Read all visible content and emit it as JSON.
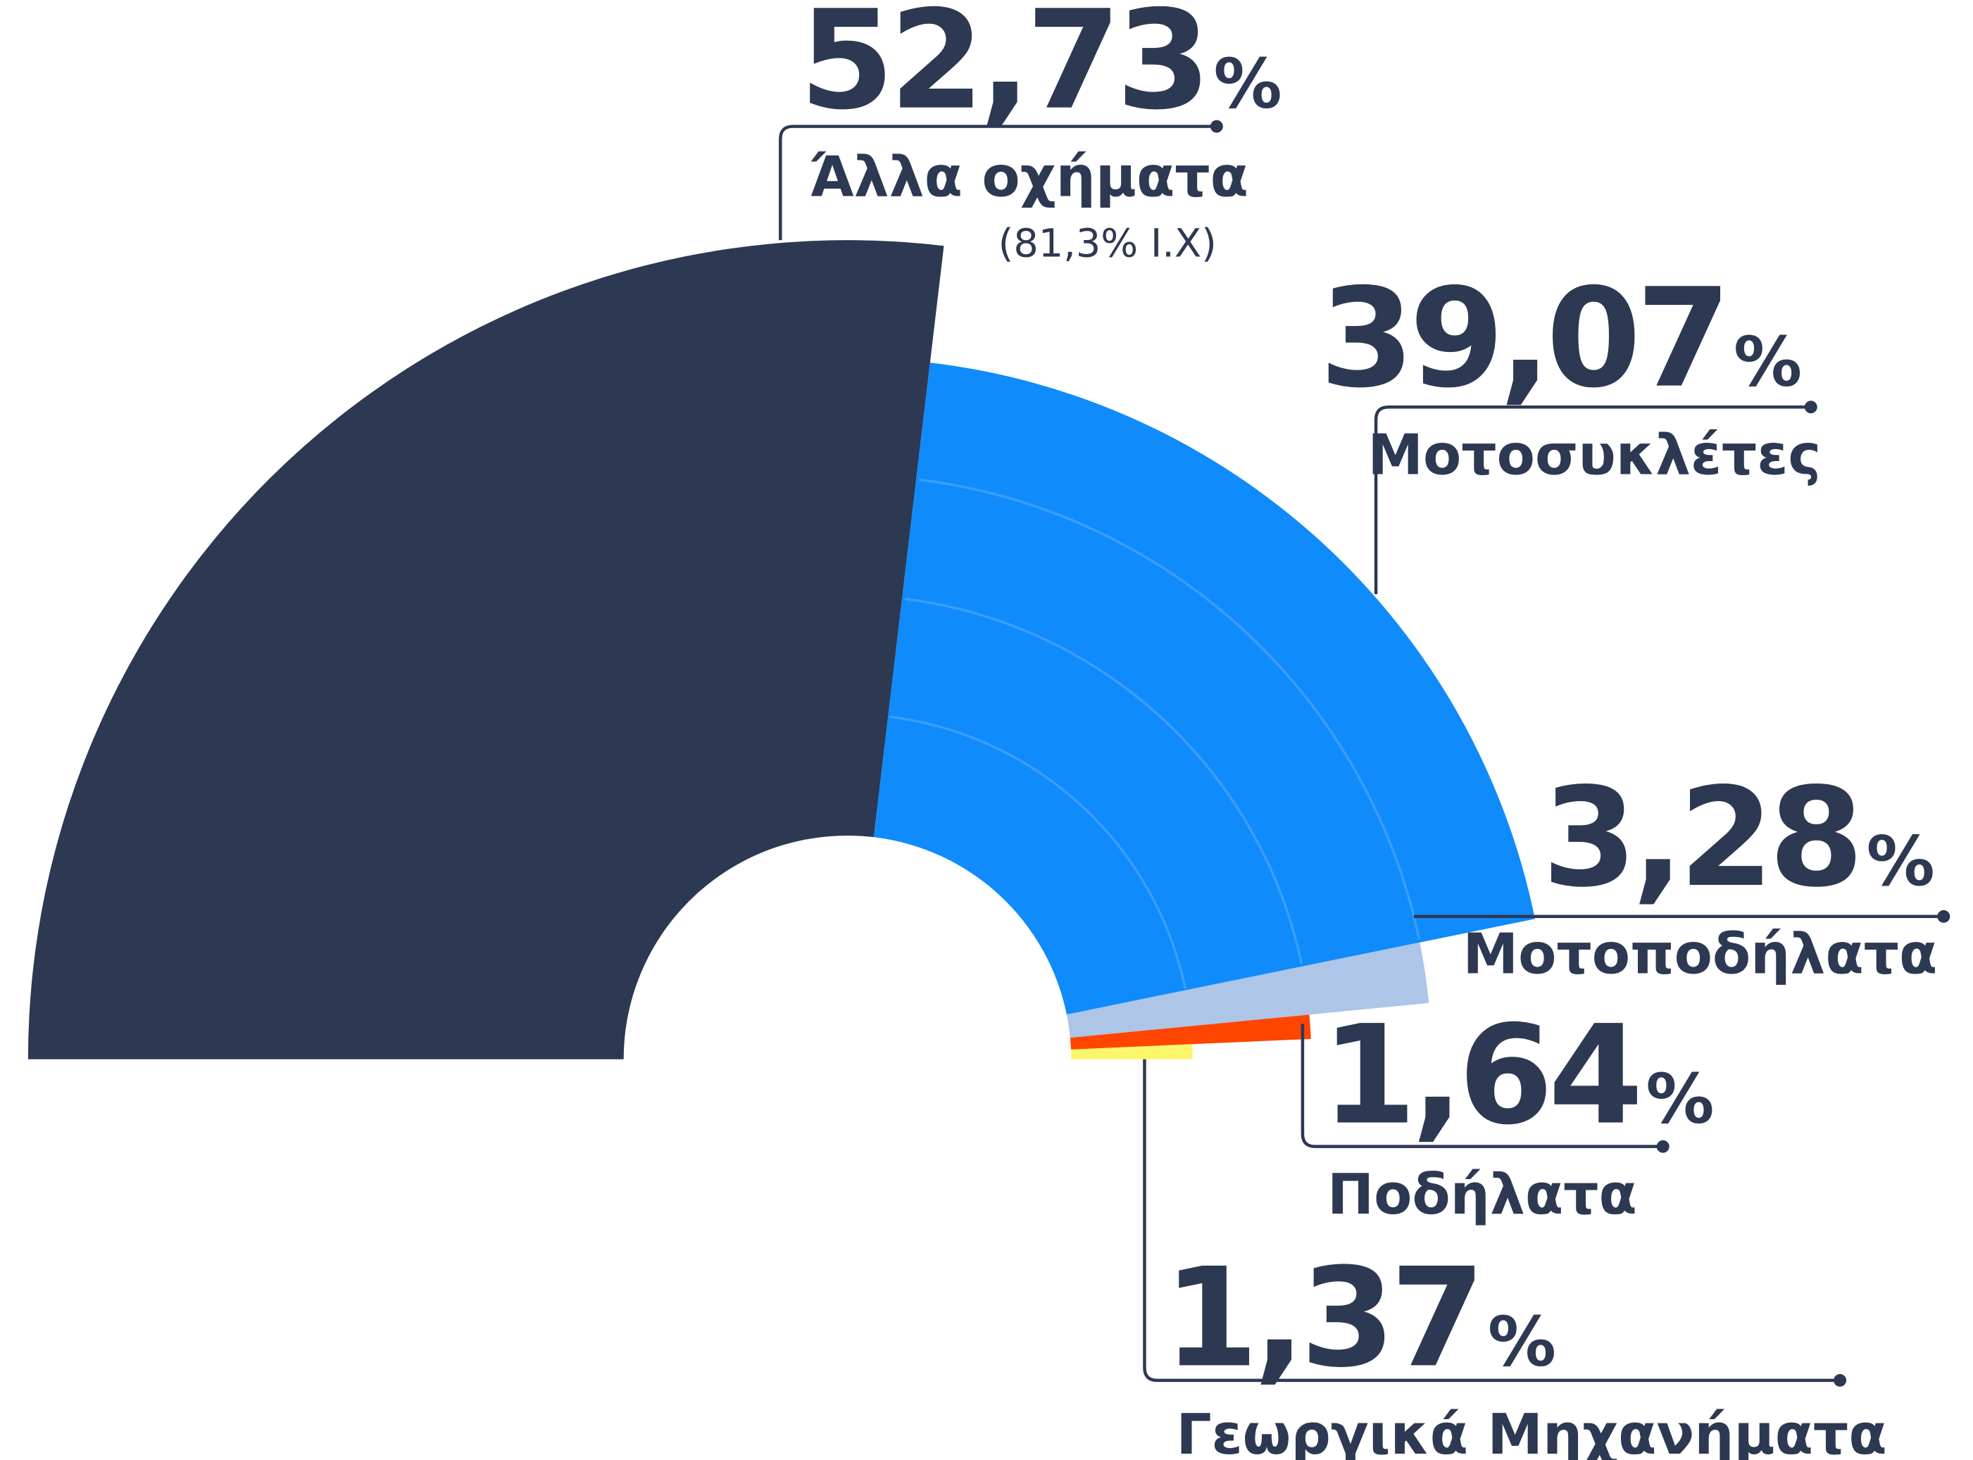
{
  "chart_data": {
    "type": "semi-donut",
    "categories": [
      "Άλλα οχήματα",
      "Μοτοσυκλέτες",
      "Μοτοποδήλατα",
      "Ποδήλατα",
      "Γεωργικά Μηχανήματα"
    ],
    "values": [
      52.73,
      39.07,
      3.28,
      1.64,
      1.37
    ],
    "value_labels": [
      "52,73%",
      "39,07%",
      "3,28%",
      "1,64%",
      "1,37%"
    ],
    "sublabels": [
      "(81,3% Ι.Χ)",
      null,
      null,
      null,
      null
    ],
    "colors": [
      "#2d3852",
      "#0f8bfc",
      "#adc5e6",
      "#ff4500",
      "#fdf56a"
    ]
  }
}
